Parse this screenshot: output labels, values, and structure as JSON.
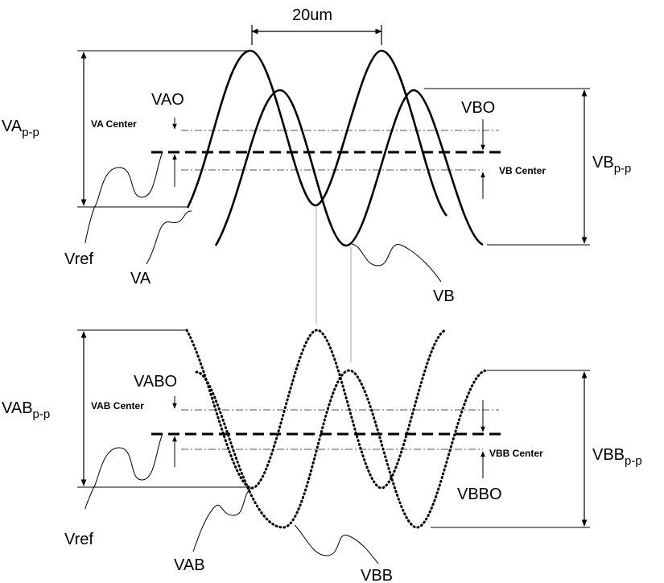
{
  "top": {
    "period_label": "20um",
    "va_pp": {
      "main": "VA",
      "sub": "p-p"
    },
    "vb_pp": {
      "main": "VB",
      "sub": "p-p"
    },
    "vao": "VAO",
    "vbo": "VBO",
    "va_center": "VA Center",
    "vb_center": "VB Center",
    "vref": "Vref",
    "va": "VA",
    "vb": "VB"
  },
  "bottom": {
    "vab_pp": {
      "main": "VAB",
      "sub": "p-p"
    },
    "vbb_pp": {
      "main": "VBB",
      "sub": "p-p"
    },
    "vabo": "VABO",
    "vbbo": "VBBO",
    "vab_center": "VAB Center",
    "vbb_center": "VBB Center",
    "vref": "Vref",
    "vab": "VAB",
    "vbb": "VBB"
  }
}
